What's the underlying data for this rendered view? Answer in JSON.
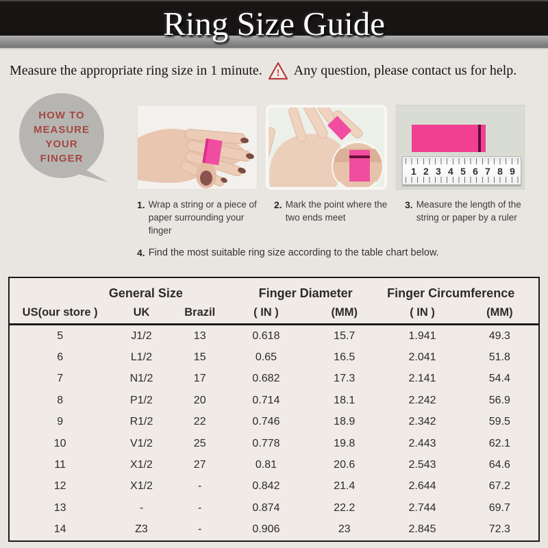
{
  "header": {
    "title": "Ring Size Guide"
  },
  "intro": {
    "before_icon": "Measure the appropriate ring size in 1 minute.",
    "warning_glyph": "!",
    "after_icon": "Any question, please contact us for help."
  },
  "how_to_bubble": {
    "lines": [
      "HOW TO",
      "MEASURE",
      "YOUR",
      "FINGER"
    ]
  },
  "steps": [
    {
      "num": "1.",
      "text": "Wrap a string or a piece of paper surrounding your finger"
    },
    {
      "num": "2.",
      "text": "Mark the point where the two ends meet"
    },
    {
      "num": "3.",
      "text": "Measure the length of the string or paper by a ruler"
    },
    {
      "num": "4.",
      "text": "Find the most suitable ring size according to the table chart below."
    }
  ],
  "illustrations": {
    "step1_photo": "hand-back-with-pink-band",
    "step2_photo": "palm-with-pink-band-and-zoom-inset",
    "step3_photo": "pink-strip-measured-on-ruler",
    "ruler_numbers": [
      "1",
      "2",
      "3",
      "4",
      "5",
      "6",
      "7",
      "8",
      "9"
    ]
  },
  "colors": {
    "accent_pink": "#f23f92",
    "warning_red": "#b23c3c",
    "bubble_gray": "#b7b5b1",
    "bubble_text_red": "#a34843",
    "header_black": "#181414",
    "band_gray": "#8b8b8b",
    "page_bg": "#e9e6e1",
    "table_bg": "#f0ebe7"
  },
  "chart_data": {
    "type": "table",
    "title": "Ring Size Guide",
    "group_headers": [
      {
        "label": "General Size",
        "span": 3
      },
      {
        "label": "Finger Diameter",
        "span": 2
      },
      {
        "label": "Finger Circumference",
        "span": 2
      }
    ],
    "columns": [
      "US(our store )",
      "UK",
      "Brazil",
      "( IN )",
      "(MM)",
      "( IN )",
      "(MM)"
    ],
    "rows": [
      [
        "5",
        "J1/2",
        "13",
        "0.618",
        "15.7",
        "1.941",
        "49.3"
      ],
      [
        "6",
        "L1/2",
        "15",
        "0.65",
        "16.5",
        "2.041",
        "51.8"
      ],
      [
        "7",
        "N1/2",
        "17",
        "0.682",
        "17.3",
        "2.141",
        "54.4"
      ],
      [
        "8",
        "P1/2",
        "20",
        "0.714",
        "18.1",
        "2.242",
        "56.9"
      ],
      [
        "9",
        "R1/2",
        "22",
        "0.746",
        "18.9",
        "2.342",
        "59.5"
      ],
      [
        "10",
        "V1/2",
        "25",
        "0.778",
        "19.8",
        "2.443",
        "62.1"
      ],
      [
        "11",
        "X1/2",
        "27",
        "0.81",
        "20.6",
        "2.543",
        "64.6"
      ],
      [
        "12",
        "X1/2",
        "-",
        "0.842",
        "21.4",
        "2.644",
        "67.2"
      ],
      [
        "13",
        "-",
        "-",
        "0.874",
        "22.2",
        "2.744",
        "69.7"
      ],
      [
        "14",
        "Z3",
        "-",
        "0.906",
        "23",
        "2.845",
        "72.3"
      ]
    ]
  }
}
